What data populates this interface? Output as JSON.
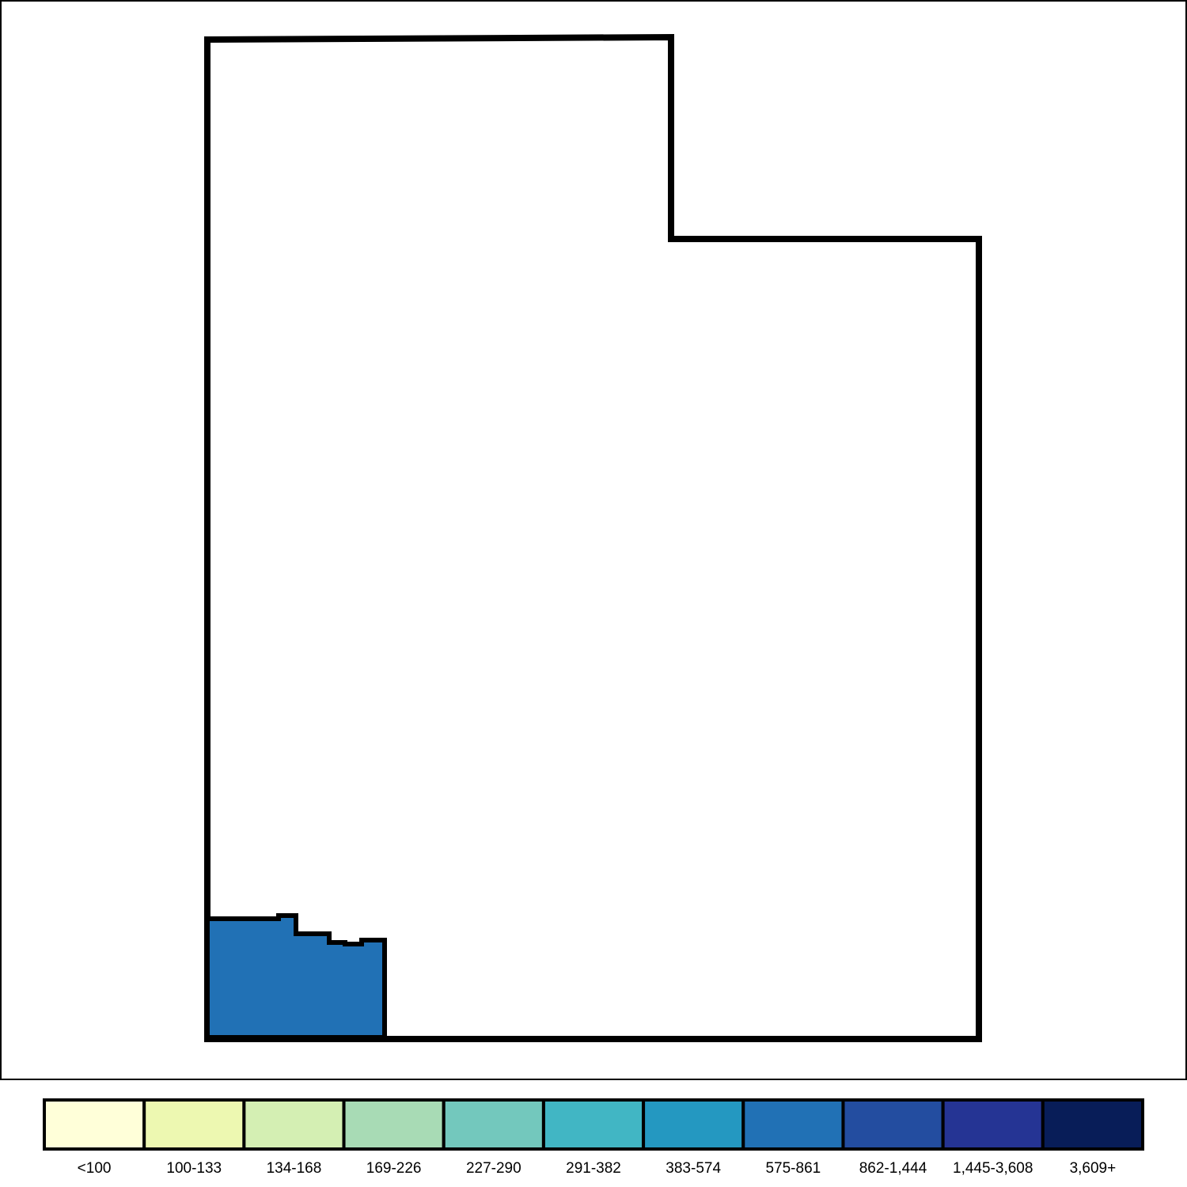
{
  "map": {
    "state_fill": "#ffffff",
    "border_color": "#000000",
    "highlighted_county": {
      "fill": "#2171b5"
    }
  },
  "legend": {
    "bins": [
      {
        "label": "<100",
        "color": "#ffffd9"
      },
      {
        "label": "100-133",
        "color": "#edf8b1"
      },
      {
        "label": "134-168",
        "color": "#d4efb3"
      },
      {
        "label": "169-226",
        "color": "#a8dbb5"
      },
      {
        "label": "227-290",
        "color": "#73c8bd"
      },
      {
        "label": "291-382",
        "color": "#41b6c4"
      },
      {
        "label": "383-574",
        "color": "#2498c1"
      },
      {
        "label": "575-861",
        "color": "#2171b5"
      },
      {
        "label": "862-1,444",
        "color": "#234da0"
      },
      {
        "label": "1,445-3,608",
        "color": "#253494"
      },
      {
        "label": "3,609+",
        "color": "#081d58"
      }
    ]
  }
}
